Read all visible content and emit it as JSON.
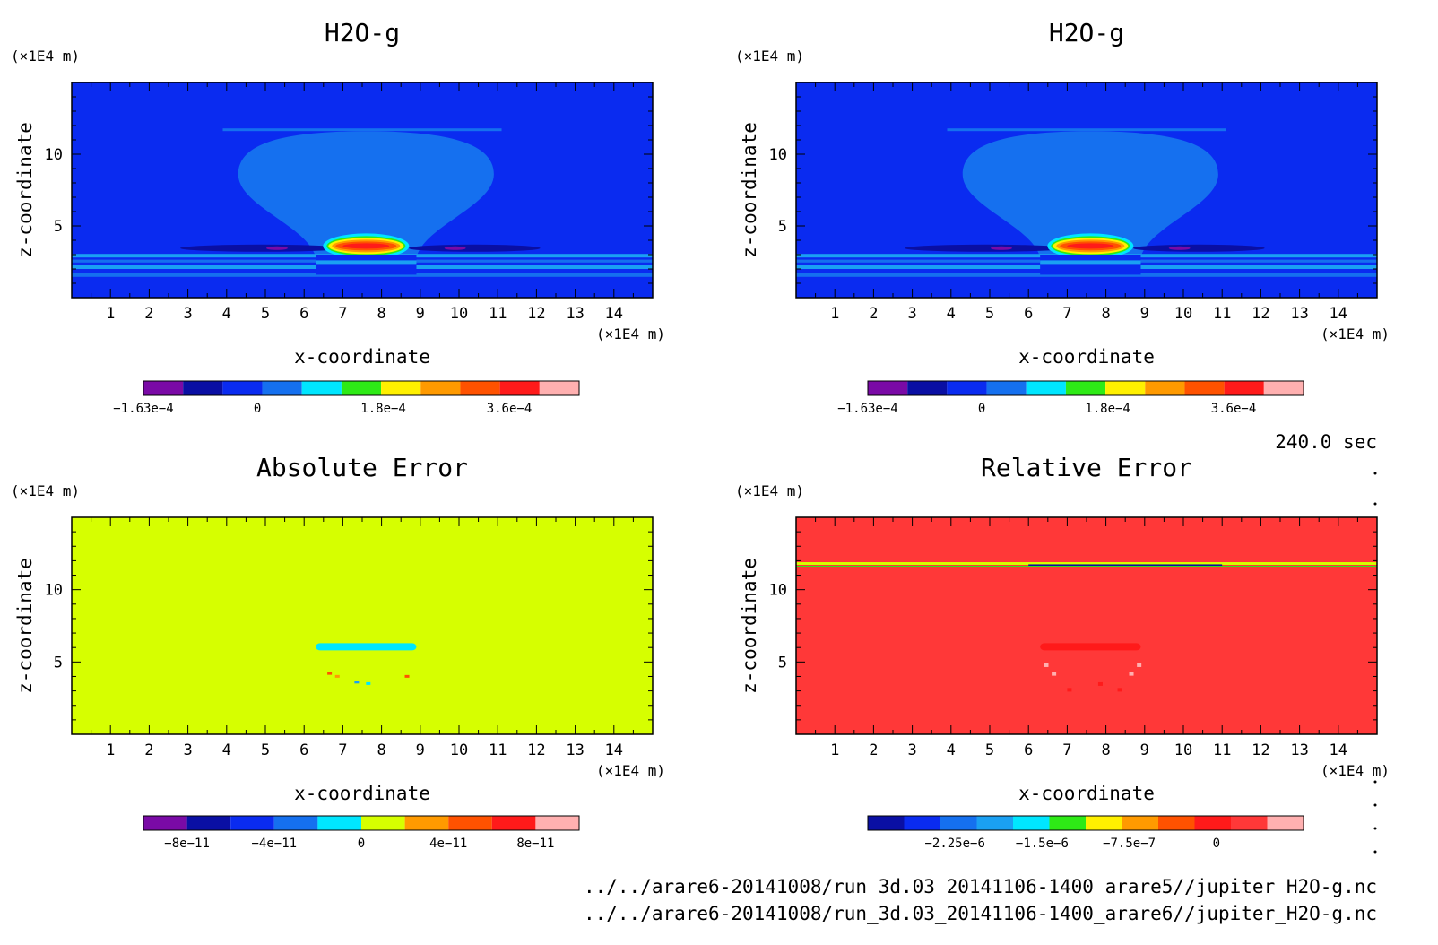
{
  "palette": {
    "purple": "#7a0aa6",
    "navy": "#0a0fa3",
    "blue": "#0a2bf0",
    "midblue": "#1570ef",
    "skyblue": "#1aa0f3",
    "cyan": "#00e6ff",
    "green": "#2eea16",
    "yellowgreen": "#d6ff00",
    "yellow": "#fff000",
    "orange": "#ff9a00",
    "darkorange": "#ff5200",
    "red": "#ff1a1a",
    "crimson": "#ff3838",
    "pink": "#ffb0b0"
  },
  "time_label": "240.0 sec",
  "footer_lines": [
    "../../arare6-20141008/run_3d.03_20141106-1400_arare5//jupiter_H2O-g.nc",
    "../../arare6-20141008/run_3d.03_20141106-1400_arare6//jupiter_H2O-g.nc"
  ],
  "chart_data": [
    {
      "type": "heatmap",
      "title": "H2O-g",
      "xlabel": "x-coordinate",
      "ylabel": "z-coordinate",
      "x_unit": "(×1E4 m)",
      "y_unit": "(×1E4 m)",
      "xlim": [
        0,
        15
      ],
      "ylim": [
        0,
        15
      ],
      "xticks": [
        1,
        2,
        3,
        4,
        5,
        6,
        7,
        8,
        9,
        10,
        11,
        12,
        13,
        14
      ],
      "yticks": [
        5,
        10
      ],
      "background": "blue",
      "colorbar": {
        "colors": [
          "purple",
          "navy",
          "blue",
          "midblue",
          "cyan",
          "green",
          "yellow",
          "orange",
          "darkorange",
          "red",
          "pink"
        ],
        "labels": [
          {
            "text": "−1.63e−4",
            "value": -0.000163
          },
          {
            "text": "0",
            "value": 0
          },
          {
            "text": "1.8e−4",
            "value": 0.00018
          },
          {
            "text": "3.6e−4",
            "value": 0.00036
          }
        ],
        "range": [
          -0.000163,
          0.00046
        ]
      }
    },
    {
      "type": "heatmap",
      "title": "H2O-g",
      "xlabel": "x-coordinate",
      "ylabel": "z-coordinate",
      "x_unit": "(×1E4 m)",
      "y_unit": "(×1E4 m)",
      "xlim": [
        0,
        15
      ],
      "ylim": [
        0,
        15
      ],
      "xticks": [
        1,
        2,
        3,
        4,
        5,
        6,
        7,
        8,
        9,
        10,
        11,
        12,
        13,
        14
      ],
      "yticks": [
        5,
        10
      ],
      "background": "blue",
      "colorbar": {
        "colors": [
          "purple",
          "navy",
          "blue",
          "midblue",
          "cyan",
          "green",
          "yellow",
          "orange",
          "darkorange",
          "red",
          "pink"
        ],
        "labels": [
          {
            "text": "−1.63e−4",
            "value": -0.000163
          },
          {
            "text": "0",
            "value": 0
          },
          {
            "text": "1.8e−4",
            "value": 0.00018
          },
          {
            "text": "3.6e−4",
            "value": 0.00036
          }
        ],
        "range": [
          -0.000163,
          0.00046
        ]
      }
    },
    {
      "type": "heatmap",
      "title": "Absolute Error",
      "xlabel": "x-coordinate",
      "ylabel": "z-coordinate",
      "x_unit": "(×1E4 m)",
      "y_unit": "(×1E4 m)",
      "xlim": [
        0,
        15
      ],
      "ylim": [
        0,
        15
      ],
      "xticks": [
        1,
        2,
        3,
        4,
        5,
        6,
        7,
        8,
        9,
        10,
        11,
        12,
        13,
        14
      ],
      "yticks": [
        5,
        10
      ],
      "background": "yellowgreen",
      "colorbar": {
        "colors": [
          "purple",
          "navy",
          "blue",
          "midblue",
          "cyan",
          "yellowgreen",
          "orange",
          "darkorange",
          "red",
          "pink"
        ],
        "labels": [
          {
            "text": "−8e−11",
            "value": -8e-11
          },
          {
            "text": "−4e−11",
            "value": -4e-11
          },
          {
            "text": "0",
            "value": 0
          },
          {
            "text": "4e−11",
            "value": 4e-11
          },
          {
            "text": "8e−11",
            "value": 8e-11
          }
        ],
        "range": [
          -1e-10,
          1e-10
        ]
      }
    },
    {
      "type": "heatmap",
      "title": "Relative Error",
      "xlabel": "x-coordinate",
      "ylabel": "z-coordinate",
      "x_unit": "(×1E4 m)",
      "y_unit": "(×1E4 m)",
      "xlim": [
        0,
        15
      ],
      "ylim": [
        0,
        15
      ],
      "xticks": [
        1,
        2,
        3,
        4,
        5,
        6,
        7,
        8,
        9,
        10,
        11,
        12,
        13,
        14
      ],
      "yticks": [
        5,
        10
      ],
      "background": "crimson",
      "colorbar": {
        "colors": [
          "navy",
          "blue",
          "midblue",
          "skyblue",
          "cyan",
          "green",
          "yellow",
          "orange",
          "darkorange",
          "red",
          "crimson",
          "pink"
        ],
        "labels": [
          {
            "text": "−2.25e−6",
            "value": -2.25e-06
          },
          {
            "text": "−1.5e−6",
            "value": -1.5e-06
          },
          {
            "text": "−7.5e−7",
            "value": -7.5e-07
          },
          {
            "text": "0",
            "value": 0
          }
        ],
        "range": [
          -3e-06,
          7.5e-07
        ]
      }
    }
  ]
}
